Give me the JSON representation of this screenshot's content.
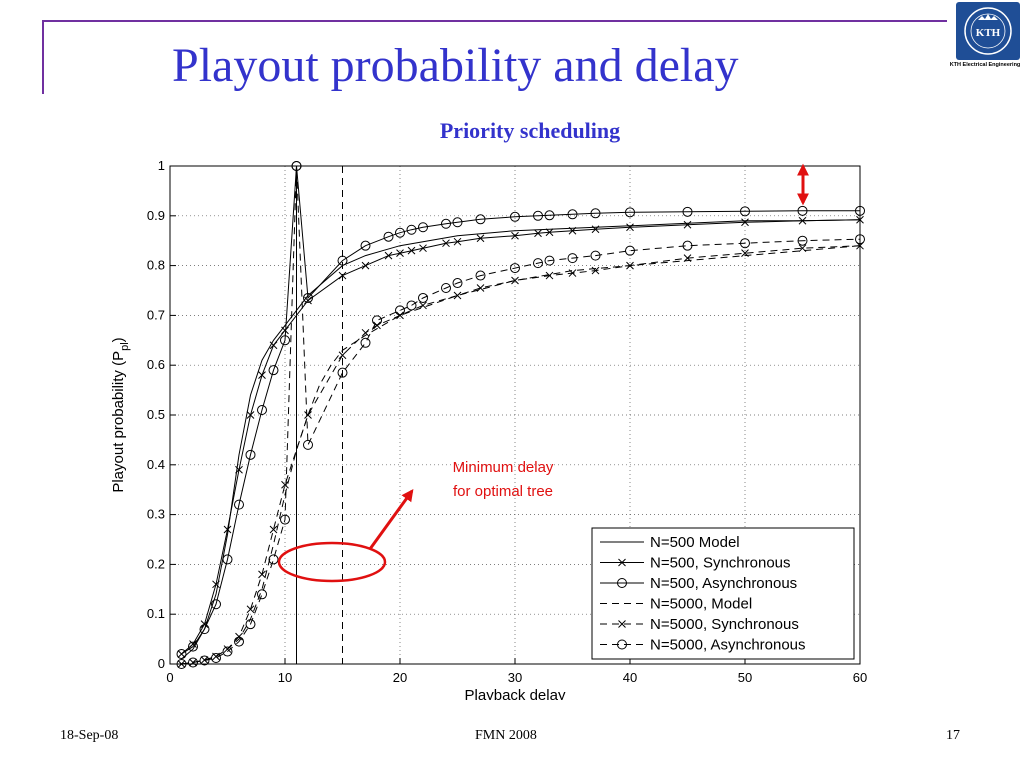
{
  "slide": {
    "title": "Playout probability and delay",
    "subtitle": "Priority scheduling",
    "logo_text": "KTH",
    "logo_caption": "KTH Electrical Engineering",
    "footer_date": "18-Sep-08",
    "footer_center": "FMN 2008",
    "page_number": "17"
  },
  "colors": {
    "title": "#3333cc",
    "frame": "#7030a0",
    "annotation": "#e01010",
    "logo": "#1f4e96"
  },
  "chart_data": {
    "type": "line",
    "xlabel": "Playback delay",
    "ylabel": "Playout probability (P",
    "ylabel_sub": "pl",
    "ylabel_close": ")",
    "xlim": [
      0,
      60
    ],
    "ylim": [
      0,
      1
    ],
    "x_ticks": [
      0,
      10,
      20,
      30,
      40,
      50,
      60
    ],
    "y_ticks": [
      0,
      0.1,
      0.2,
      0.3,
      0.4,
      0.5,
      0.6,
      0.7,
      0.8,
      0.9,
      1
    ],
    "grid": true,
    "legend_position": "bottom-right",
    "annotation_text": [
      "Minimum delay",
      "for optimal tree"
    ],
    "vertical_lines": [
      {
        "x": 11,
        "style": "solid"
      },
      {
        "x": 15,
        "style": "dashed"
      }
    ],
    "series": [
      {
        "name": "N=500 Model",
        "style": "solid",
        "marker": "none",
        "x": [
          1,
          2,
          3,
          4,
          5,
          6,
          7,
          8,
          9,
          10,
          11,
          12,
          13,
          15,
          17,
          20,
          25,
          30,
          35,
          40,
          45,
          50,
          55,
          60
        ],
        "y": [
          0.01,
          0.03,
          0.07,
          0.14,
          0.26,
          0.42,
          0.54,
          0.61,
          0.65,
          0.68,
          0.71,
          0.74,
          0.76,
          0.8,
          0.82,
          0.84,
          0.86,
          0.87,
          0.875,
          0.88,
          0.885,
          0.89,
          0.89,
          0.892
        ]
      },
      {
        "name": "N=500, Synchronous",
        "style": "solid",
        "marker": "x",
        "x": [
          1,
          2,
          3,
          4,
          5,
          6,
          7,
          8,
          9,
          10,
          12,
          15,
          17,
          19,
          20,
          21,
          22,
          24,
          25,
          27,
          30,
          32,
          33,
          35,
          37,
          40,
          45,
          50,
          55,
          60
        ],
        "y": [
          0.02,
          0.04,
          0.08,
          0.16,
          0.27,
          0.39,
          0.5,
          0.58,
          0.64,
          0.67,
          0.73,
          0.78,
          0.8,
          0.82,
          0.825,
          0.83,
          0.835,
          0.845,
          0.848,
          0.855,
          0.86,
          0.865,
          0.867,
          0.87,
          0.873,
          0.877,
          0.882,
          0.887,
          0.89,
          0.892
        ]
      },
      {
        "name": "N=500, Asynchronous",
        "style": "solid",
        "marker": "o",
        "x": [
          1,
          2,
          3,
          4,
          5,
          6,
          7,
          8,
          9,
          10,
          11,
          12,
          15,
          17,
          19,
          20,
          21,
          22,
          24,
          25,
          27,
          30,
          32,
          33,
          35,
          37,
          40,
          45,
          50,
          55,
          60
        ],
        "y": [
          0.02,
          0.035,
          0.07,
          0.12,
          0.21,
          0.32,
          0.42,
          0.51,
          0.59,
          0.65,
          1.0,
          0.735,
          0.81,
          0.84,
          0.858,
          0.866,
          0.872,
          0.877,
          0.884,
          0.887,
          0.893,
          0.898,
          0.9,
          0.901,
          0.903,
          0.905,
          0.907,
          0.908,
          0.909,
          0.91,
          0.91
        ]
      },
      {
        "name": "N=5000, Model",
        "style": "dashed",
        "marker": "none",
        "x": [
          1,
          2,
          3,
          4,
          5,
          6,
          7,
          8,
          9,
          10,
          11,
          12,
          13,
          14,
          15,
          17,
          20,
          25,
          30,
          35,
          40,
          45,
          50,
          55,
          60
        ],
        "y": [
          0.0,
          0.003,
          0.008,
          0.015,
          0.03,
          0.05,
          0.09,
          0.15,
          0.24,
          0.34,
          0.43,
          0.5,
          0.56,
          0.6,
          0.63,
          0.66,
          0.7,
          0.74,
          0.77,
          0.79,
          0.8,
          0.81,
          0.82,
          0.83,
          0.84
        ]
      },
      {
        "name": "N=5000, Synchronous",
        "style": "dashed",
        "marker": "x",
        "x": [
          1,
          2,
          3,
          4,
          5,
          6,
          7,
          8,
          9,
          10,
          12,
          15,
          17,
          18,
          20,
          22,
          25,
          27,
          30,
          33,
          35,
          37,
          40,
          45,
          50,
          55,
          60
        ],
        "y": [
          0.0,
          0.003,
          0.008,
          0.015,
          0.03,
          0.055,
          0.11,
          0.18,
          0.27,
          0.36,
          0.5,
          0.62,
          0.665,
          0.68,
          0.7,
          0.72,
          0.74,
          0.755,
          0.77,
          0.78,
          0.785,
          0.79,
          0.8,
          0.815,
          0.825,
          0.835,
          0.84
        ]
      },
      {
        "name": "N=5000, Asynchronous",
        "style": "dashed",
        "marker": "o",
        "x": [
          1,
          2,
          3,
          4,
          5,
          6,
          7,
          8,
          9,
          10,
          11,
          12,
          15,
          17,
          18,
          20,
          21,
          22,
          24,
          25,
          27,
          30,
          32,
          33,
          35,
          37,
          40,
          45,
          50,
          55,
          60
        ],
        "y": [
          0.0,
          0.003,
          0.007,
          0.012,
          0.025,
          0.045,
          0.08,
          0.14,
          0.21,
          0.29,
          1.0,
          0.44,
          0.585,
          0.645,
          0.69,
          0.71,
          0.72,
          0.735,
          0.755,
          0.765,
          0.78,
          0.795,
          0.805,
          0.81,
          0.815,
          0.82,
          0.83,
          0.84,
          0.845,
          0.85,
          0.853
        ]
      }
    ]
  }
}
